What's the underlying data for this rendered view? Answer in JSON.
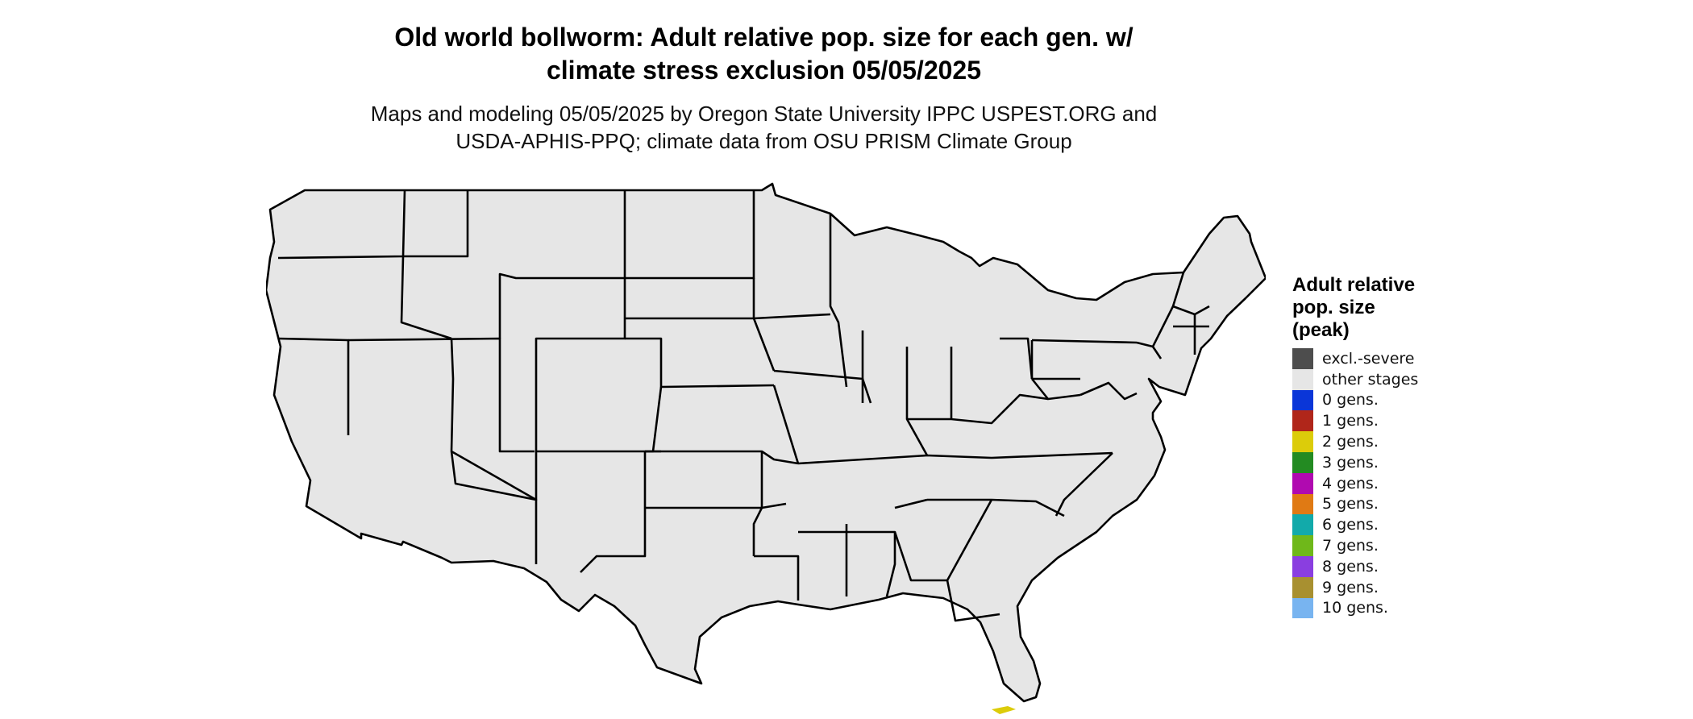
{
  "title": {
    "line1": "Old world bollworm: Adult relative pop. size for each gen. w/",
    "line2": "climate stress exclusion 05/05/2025"
  },
  "subtitle": {
    "line1": "Maps and modeling 05/05/2025 by Oregon State University IPPC USPEST.ORG and",
    "line2": "USDA-APHIS-PPQ; climate data from OSU PRISM Climate Group"
  },
  "legend": {
    "title_lines": [
      "Adult relative",
      "pop. size",
      "(peak)"
    ],
    "items": [
      {
        "label": "excl.-severe",
        "color": "#4d4d4d",
        "icon": "swatch-dark-gray"
      },
      {
        "label": "other stages",
        "color": "#e6e6e6",
        "icon": "swatch-light-gray"
      },
      {
        "label": "0 gens.",
        "color": "#0a36d8",
        "icon": "swatch-blue"
      },
      {
        "label": "1 gens.",
        "color": "#b0261a",
        "icon": "swatch-dark-red"
      },
      {
        "label": "2 gens.",
        "color": "#dccc0a",
        "icon": "swatch-yellow"
      },
      {
        "label": "3 gens.",
        "color": "#238b22",
        "icon": "swatch-green"
      },
      {
        "label": "4 gens.",
        "color": "#b00ab0",
        "icon": "swatch-magenta"
      },
      {
        "label": "5 gens.",
        "color": "#e07a14",
        "icon": "swatch-orange"
      },
      {
        "label": "6 gens.",
        "color": "#12aaaa",
        "icon": "swatch-teal"
      },
      {
        "label": "7 gens.",
        "color": "#6fb81a",
        "icon": "swatch-lime"
      },
      {
        "label": "8 gens.",
        "color": "#8a3ee0",
        "icon": "swatch-purple"
      },
      {
        "label": "9 gens.",
        "color": "#a89030",
        "icon": "swatch-olive"
      },
      {
        "label": "10 gens.",
        "color": "#78b4f0",
        "icon": "swatch-light-blue"
      }
    ]
  },
  "map": {
    "colors": {
      "land": "#e6e6e6",
      "excluded": "#4d4d4d",
      "zero_gen": "#0a36d8",
      "zero_gen_edge": "#16a8f0",
      "one_gen": "#d83a10",
      "two_gen": "#dccc0a",
      "border": "#000000"
    }
  }
}
